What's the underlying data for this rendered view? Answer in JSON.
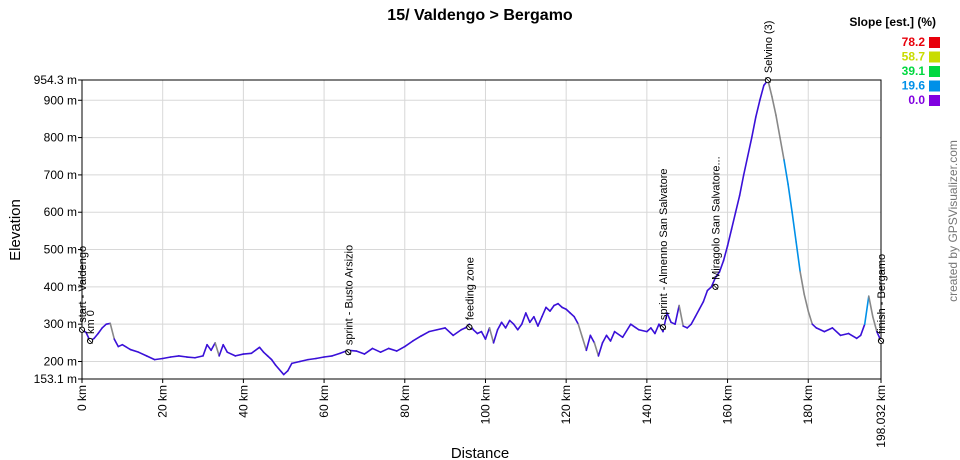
{
  "chart_data": {
    "type": "line",
    "title": "15/ Valdengo > Bergamo",
    "xlabel": "Distance",
    "ylabel": "Elevation",
    "x_unit": "km",
    "y_unit": "m",
    "xlim": [
      0,
      198.032
    ],
    "ylim": [
      153.1,
      954.3
    ],
    "x_ticks": [
      "0 km",
      "20 km",
      "40 km",
      "60 km",
      "80 km",
      "100 km",
      "120 km",
      "140 km",
      "160 km",
      "180 km",
      "198.032 km"
    ],
    "y_ticks": [
      "153.1 m",
      "200 m",
      "300 m",
      "400 m",
      "500 m",
      "600 m",
      "700 m",
      "800 m",
      "900 m",
      "954.3 m"
    ],
    "grid": true,
    "series": [
      {
        "x": [
          0,
          1,
          2,
          3,
          4,
          5,
          6,
          7,
          8,
          9,
          10,
          12,
          14,
          16,
          18,
          20,
          22,
          24,
          26,
          28,
          30,
          31,
          32,
          33,
          34,
          35,
          36,
          38,
          40,
          42,
          44,
          45,
          46,
          47,
          48,
          50,
          51,
          52,
          54,
          56,
          58,
          60,
          62,
          64,
          66,
          68,
          70,
          72,
          74,
          76,
          78,
          80,
          82,
          84,
          86,
          88,
          90,
          92,
          94,
          95,
          96,
          97,
          98,
          99,
          100,
          101,
          102,
          103,
          104,
          105,
          106,
          107,
          108,
          109,
          110,
          111,
          112,
          113,
          114,
          115,
          116,
          117,
          118,
          119,
          120,
          121,
          122,
          123,
          124,
          125,
          126,
          127,
          128,
          129,
          130,
          131,
          132,
          134,
          136,
          138,
          140,
          141,
          142,
          143,
          144,
          145,
          146,
          147,
          148,
          149,
          150,
          151,
          152,
          153,
          154,
          155,
          156,
          157,
          158,
          159,
          160,
          161,
          162,
          163,
          164,
          165,
          166,
          167,
          168,
          169,
          170,
          171,
          172,
          173,
          174,
          175,
          176,
          177,
          178,
          179,
          180,
          181,
          182,
          184,
          186,
          188,
          190,
          192,
          193,
          194,
          195,
          196,
          197,
          198.032
        ],
        "y": [
          285,
          278,
          255,
          262,
          275,
          290,
          300,
          302,
          260,
          240,
          245,
          232,
          225,
          215,
          205,
          208,
          212,
          215,
          212,
          210,
          215,
          245,
          230,
          250,
          215,
          245,
          225,
          215,
          220,
          222,
          238,
          225,
          215,
          205,
          190,
          165,
          175,
          195,
          200,
          205,
          208,
          212,
          215,
          222,
          230,
          228,
          220,
          235,
          225,
          235,
          228,
          240,
          255,
          268,
          280,
          285,
          290,
          270,
          285,
          290,
          300,
          285,
          275,
          280,
          260,
          290,
          250,
          285,
          305,
          290,
          310,
          300,
          285,
          300,
          330,
          305,
          320,
          295,
          320,
          345,
          335,
          350,
          355,
          345,
          340,
          330,
          320,
          300,
          265,
          230,
          270,
          250,
          215,
          250,
          270,
          255,
          280,
          265,
          300,
          285,
          280,
          290,
          275,
          300,
          280,
          330,
          305,
          300,
          350,
          295,
          290,
          300,
          320,
          340,
          360,
          390,
          400,
          425,
          440,
          470,
          510,
          555,
          600,
          645,
          700,
          750,
          800,
          855,
          900,
          940,
          954,
          910,
          860,
          800,
          740,
          675,
          600,
          520,
          440,
          380,
          335,
          300,
          290,
          280,
          290,
          270,
          275,
          262,
          270,
          300,
          375,
          320,
          280,
          255
        ]
      }
    ],
    "waypoints": [
      {
        "label": "start - Valdengo",
        "km": 0,
        "elev": 285
      },
      {
        "label": "km 0",
        "km": 2,
        "elev": 255
      },
      {
        "label": "sprint - Busto Arsizio",
        "km": 66,
        "elev": 225
      },
      {
        "label": "feeding zone",
        "km": 96,
        "elev": 292
      },
      {
        "label": "sprint - Almenno San Salvatore",
        "km": 144,
        "elev": 292
      },
      {
        "label": "Miragolo San Salvatore...",
        "km": 157,
        "elev": 400
      },
      {
        "label": "Selvino (3)",
        "km": 170,
        "elev": 954
      },
      {
        "label": "finish - Bergamo",
        "km": 198.032,
        "elev": 255
      }
    ],
    "legend": {
      "title": "Slope [est.] (%)",
      "position": "top-right",
      "entries": [
        {
          "label": "78.2",
          "color": "#e8000b"
        },
        {
          "label": "58.7",
          "color": "#c8dc00"
        },
        {
          "label": "39.1",
          "color": "#00d840"
        },
        {
          "label": "19.6",
          "color": "#0090e8"
        },
        {
          "label": "0.0",
          "color": "#8000e0"
        }
      ]
    },
    "colors": {
      "low_slope": "#3a10d8",
      "flat_gray": "#888888",
      "grid": "#d8d8d8"
    }
  },
  "credit": "created by GPSVisualizer.com"
}
